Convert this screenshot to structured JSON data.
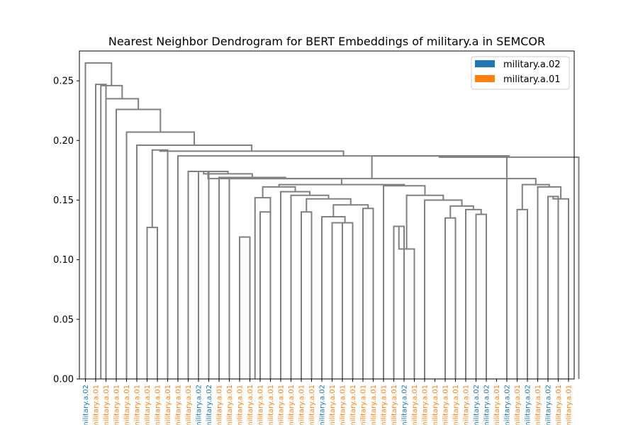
{
  "chart_data": {
    "type": "dendrogram",
    "title": "Nearest Neighbor Dendrogram for BERT Embeddings of military.a in SEMCOR",
    "xlabel": "",
    "ylabel": "",
    "ylim": [
      0,
      0.275
    ],
    "yticks": [
      0.0,
      0.05,
      0.1,
      0.15,
      0.2,
      0.25
    ],
    "ytick_labels": [
      "0.00",
      "0.05",
      "0.10",
      "0.15",
      "0.20",
      "0.25"
    ],
    "grid": false,
    "legend_placement": "top-right",
    "legend": [
      {
        "label": "military.a.02",
        "color": "#1f77b4"
      },
      {
        "label": "military.a.01",
        "color": "#ff7f0e"
      }
    ],
    "link_color": "#808080",
    "leaves": [
      {
        "label": "military.a.02",
        "sense": "02"
      },
      {
        "label": "military.a.01",
        "sense": "01"
      },
      {
        "label": "military.a.01",
        "sense": "01"
      },
      {
        "label": "military.a.01",
        "sense": "01"
      },
      {
        "label": "military.a.01",
        "sense": "01"
      },
      {
        "label": "military.a.01",
        "sense": "01"
      },
      {
        "label": "military.a.01",
        "sense": "01"
      },
      {
        "label": "military.a.01",
        "sense": "01"
      },
      {
        "label": "military.a.01",
        "sense": "01"
      },
      {
        "label": "military.a.01",
        "sense": "01"
      },
      {
        "label": "military.a.01",
        "sense": "01"
      },
      {
        "label": "military.a.02",
        "sense": "02"
      },
      {
        "label": "military.a.02",
        "sense": "02"
      },
      {
        "label": "military.a.01",
        "sense": "01"
      },
      {
        "label": "military.a.01",
        "sense": "01"
      },
      {
        "label": "military.a.01",
        "sense": "01"
      },
      {
        "label": "military.a.01",
        "sense": "01"
      },
      {
        "label": "military.a.01",
        "sense": "01"
      },
      {
        "label": "military.a.01",
        "sense": "01"
      },
      {
        "label": "military.a.01",
        "sense": "01"
      },
      {
        "label": "military.a.01",
        "sense": "01"
      },
      {
        "label": "military.a.01",
        "sense": "01"
      },
      {
        "label": "military.a.01",
        "sense": "01"
      },
      {
        "label": "military.a.02",
        "sense": "02"
      },
      {
        "label": "military.a.01",
        "sense": "01"
      },
      {
        "label": "military.a.01",
        "sense": "01"
      },
      {
        "label": "military.a.01",
        "sense": "01"
      },
      {
        "label": "military.a.01",
        "sense": "01"
      },
      {
        "label": "military.a.01",
        "sense": "01"
      },
      {
        "label": "military.a.01",
        "sense": "01"
      },
      {
        "label": "military.a.01",
        "sense": "01"
      },
      {
        "label": "military.a.02",
        "sense": "02"
      },
      {
        "label": "military.a.01",
        "sense": "01"
      },
      {
        "label": "military.a.01",
        "sense": "01"
      },
      {
        "label": "military.a.01",
        "sense": "01"
      },
      {
        "label": "military.a.01",
        "sense": "01"
      },
      {
        "label": "military.a.01",
        "sense": "01"
      },
      {
        "label": "military.a.01",
        "sense": "01"
      },
      {
        "label": "military.a.02",
        "sense": "02"
      },
      {
        "label": "military.a.02",
        "sense": "02"
      },
      {
        "label": "military.a.01",
        "sense": "01"
      },
      {
        "label": "military.a.02",
        "sense": "02"
      },
      {
        "label": "military.a.01",
        "sense": "01"
      },
      {
        "label": "military.a.02",
        "sense": "02"
      },
      {
        "label": "military.a.01",
        "sense": "01"
      },
      {
        "label": "military.a.02",
        "sense": "02"
      },
      {
        "label": "military.a.01",
        "sense": "01"
      },
      {
        "label": "military.a.01",
        "sense": "01"
      }
    ],
    "links": [
      {
        "x": [
          11,
          12
        ],
        "h": 0.174
      },
      {
        "x": [
          15,
          16
        ],
        "h": 0.119
      },
      {
        "x": [
          17,
          18
        ],
        "h": 0.14
      },
      {
        "x": [
          16.5,
          18
        ],
        "h": 0.152
      },
      {
        "x": [
          21,
          22
        ],
        "h": 0.14
      },
      {
        "x": [
          24,
          25
        ],
        "h": 0.131
      },
      {
        "x": [
          24.5,
          26
        ],
        "h": 0.131
      },
      {
        "x": [
          23,
          25.25
        ],
        "h": 0.136
      },
      {
        "x": [
          27,
          28
        ],
        "h": 0.143
      },
      {
        "x": [
          24.125,
          27.5
        ],
        "h": 0.146
      },
      {
        "x": [
          21.5,
          25.8125
        ],
        "h": 0.151
      },
      {
        "x": [
          20,
          23.65625
        ],
        "h": 0.154
      },
      {
        "x": [
          19,
          21.828125
        ],
        "h": 0.157
      },
      {
        "x": [
          17.25,
          20.4140625
        ],
        "h": 0.161
      },
      {
        "x": [
          30,
          31
        ],
        "h": 0.128
      },
      {
        "x": [
          30.5,
          32
        ],
        "h": 0.109
      },
      {
        "x": [
          35,
          36
        ],
        "h": 0.135
      },
      {
        "x": [
          38,
          39
        ],
        "h": 0.138
      },
      {
        "x": [
          37,
          38.5
        ],
        "h": 0.142
      },
      {
        "x": [
          35.5,
          37.75
        ],
        "h": 0.145
      },
      {
        "x": [
          33,
          36.625
        ],
        "h": 0.15
      },
      {
        "x": [
          31.25,
          34.8125
        ],
        "h": 0.154
      },
      {
        "x": [
          29,
          33.03125
        ],
        "h": 0.162
      },
      {
        "x": [
          18.83203125,
          31.015625
        ],
        "h": 0.163
      },
      {
        "x": [
          14,
          24.923828125
        ],
        "h": 0.168
      },
      {
        "x": [
          13,
          19.4619140625
        ],
        "h": 0.169
      },
      {
        "x": [
          11.5,
          16.23095703125
        ],
        "h": 0.172
      },
      {
        "x": [
          10,
          13.865478515625
        ],
        "h": 0.174
      },
      {
        "x": [
          42,
          43
        ],
        "h": 0.142
      },
      {
        "x": [
          45,
          46
        ],
        "h": 0.153
      },
      {
        "x": [
          45.5,
          47
        ],
        "h": 0.151
      },
      {
        "x": [
          44,
          46.25
        ],
        "h": 0.161
      },
      {
        "x": [
          42.5,
          45.125
        ],
        "h": 0.163
      },
      {
        "x": [
          11.9327392578125,
          43.8125
        ],
        "h": 0.168
      },
      {
        "x": [
          27.87261962890625,
          41
        ],
        "h": 0.187
      },
      {
        "x": [
          34.436309814453125,
          48
        ],
        "h": 0.186
      },
      {
        "x": [
          9,
          41.21815490722656
        ],
        "h": 0.187
      },
      {
        "x": [
          6,
          7
        ],
        "h": 0.127
      },
      {
        "x": [
          6.5,
          8
        ],
        "h": 0.192
      },
      {
        "x": [
          7.25,
          25.10907745361328
        ],
        "h": 0.191
      },
      {
        "x": [
          5,
          16.17953872680664
        ],
        "h": 0.196
      },
      {
        "x": [
          4,
          10.58976936340332
        ],
        "h": 0.207
      },
      {
        "x": [
          3,
          7.29488468170166
        ],
        "h": 0.226
      },
      {
        "x": [
          2,
          5.14744234085083
        ],
        "h": 0.235
      },
      {
        "x": [
          1.5,
          3.573721170425415
        ],
        "h": 0.246
      },
      {
        "x": [
          1,
          2
        ],
        "h": 0.247
      },
      {
        "x": [
          0,
          2.5368605852127075
        ],
        "h": 0.265
      }
    ]
  }
}
